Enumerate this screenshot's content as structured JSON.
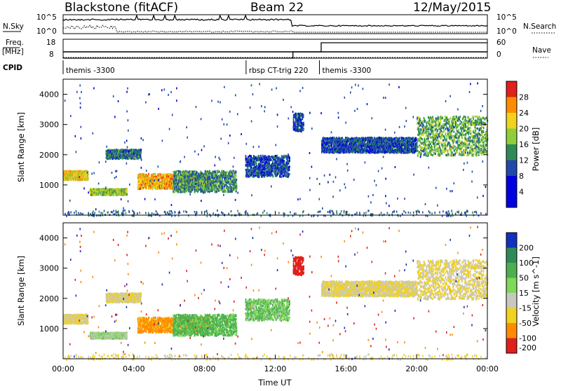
{
  "header": {
    "station": "Blackstone (fitACF)",
    "beam": "Beam 22",
    "date": "12/May/2015"
  },
  "noise_panel": {
    "left_label": "N.Sky",
    "right_label": "N.Search",
    "left_ticks": [
      "10^5",
      "10^0"
    ],
    "right_ticks": [
      "10^5",
      "10^0"
    ]
  },
  "freq_panel": {
    "left_label_line1": "Freq.",
    "left_label_line2": "[MHz]",
    "right_label": "Nave",
    "left_ticks": [
      "18",
      "8"
    ],
    "right_ticks": [
      "60",
      "0"
    ],
    "freq_ticks_values": [
      18,
      8
    ],
    "nave_ticks_values": [
      60,
      0
    ],
    "nave_steps": [
      {
        "time": 0.0,
        "value": 0
      },
      {
        "time": 13.0,
        "value": 20
      },
      {
        "time": 14.6,
        "value": 49
      }
    ]
  },
  "cpid_panel": {
    "label": "CPID",
    "segments": [
      {
        "start": 0.0,
        "label": "themis -3300"
      },
      {
        "start": 10.35,
        "label": "rbsp CT-trig 220"
      },
      {
        "start": 14.5,
        "label": "themis -3300"
      }
    ]
  },
  "power_panel": {
    "ylabel": "Slant Range [km]",
    "colorbar_label": "Power [dB]",
    "colorbar_ticks": [
      "28",
      "24",
      "20",
      "16",
      "12",
      "8",
      "4"
    ],
    "colors": [
      "#0000e0",
      "#1f4aa8",
      "#2e8b57",
      "#8fce3a",
      "#f2d21a",
      "#ff8c00",
      "#e0201a"
    ]
  },
  "velocity_panel": {
    "ylabel": "Slant Range [km]",
    "colorbar_label": "Velocity [m s^-1]",
    "colorbar_ticks": [
      "200",
      "100",
      "50",
      "15",
      "-15",
      "-50",
      "-100",
      "-200"
    ],
    "colors": [
      "#1030c0",
      "#2e8b57",
      "#4caf50",
      "#7ed957",
      "#c8c8c0",
      "#f2d21a",
      "#ff8c00",
      "#e0201a"
    ]
  },
  "xaxis": {
    "label": "Time UT",
    "ticks": [
      "00:00",
      "04:00",
      "08:00",
      "12:00",
      "16:00",
      "20:00",
      "00:00"
    ]
  },
  "yaxis": {
    "ticks": [
      "1000",
      "2000",
      "3000",
      "4000"
    ]
  },
  "chart_data": {
    "type": "heatmap",
    "title": "Blackstone (fitACF)",
    "subtitle": "Beam 22 — 12/May/2015",
    "xlabel": "Time UT",
    "ylabel": "Slant Range [km]",
    "xlim": [
      0,
      24
    ],
    "ylim": [
      0,
      4500
    ],
    "x_ticks": [
      "00:00",
      "04:00",
      "08:00",
      "12:00",
      "16:00",
      "20:00",
      "00:00"
    ],
    "y_ticks": [
      1000,
      2000,
      3000,
      4000
    ],
    "power_scale_dB": [
      4,
      8,
      12,
      16,
      20,
      24,
      28
    ],
    "velocity_scale_ms": [
      200,
      100,
      50,
      15,
      -15,
      -50,
      -100,
      -200
    ],
    "echo_regions": [
      {
        "time_start": 0.0,
        "time_end": 1.4,
        "range_km": [
          1200,
          1500
        ],
        "power_dB": 20,
        "velocity_ms": -15
      },
      {
        "time_start": 1.5,
        "time_end": 3.6,
        "range_km": [
          700,
          900
        ],
        "power_dB": 16,
        "velocity_ms": 15
      },
      {
        "time_start": 2.4,
        "time_end": 4.4,
        "range_km": [
          1900,
          2200
        ],
        "power_dB": 10,
        "velocity_ms": -15
      },
      {
        "time_start": 4.2,
        "time_end": 8.2,
        "range_km": [
          900,
          1400
        ],
        "power_dB": 22,
        "velocity_ms": -60
      },
      {
        "time_start": 6.2,
        "time_end": 9.8,
        "range_km": [
          800,
          1500
        ],
        "power_dB": 12,
        "velocity_ms": 40
      },
      {
        "time_start": 10.3,
        "time_end": 12.8,
        "range_km": [
          1300,
          2000
        ],
        "power_dB": 8,
        "velocity_ms": 30
      },
      {
        "time_start": 13.0,
        "time_end": 13.6,
        "range_km": [
          2800,
          3400
        ],
        "power_dB": 8,
        "velocity_ms": -210
      },
      {
        "time_start": 14.6,
        "time_end": 20.0,
        "range_km": [
          2100,
          2600
        ],
        "power_dB": 8,
        "velocity_ms": -15
      },
      {
        "time_start": 20.0,
        "time_end": 24.0,
        "range_km": [
          2000,
          3300
        ],
        "power_dB": 14,
        "velocity_ms": -15
      }
    ]
  }
}
